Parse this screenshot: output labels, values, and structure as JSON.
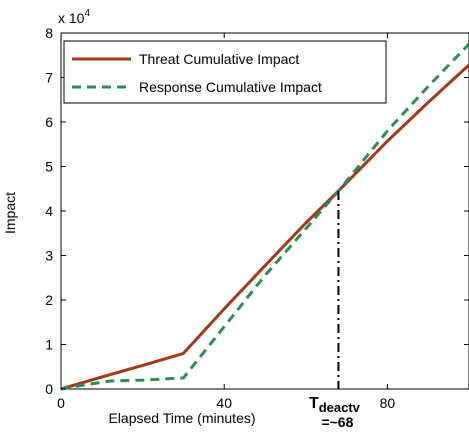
{
  "chart_data": {
    "type": "line",
    "xlabel": "Elapsed Time (minutes)",
    "ylabel": "Impact",
    "xlim": [
      0,
      100
    ],
    "ylim": [
      0,
      80000
    ],
    "x_ticks": [
      0,
      40,
      80
    ],
    "y_ticks": [
      0,
      1,
      2,
      3,
      4,
      5,
      6,
      7,
      8
    ],
    "y_multiplier_base": "x 10",
    "y_multiplier_exp": "4",
    "grid": false,
    "legend_position": "top-left",
    "series": [
      {
        "name": "Threat Cumulative Impact",
        "color": "#a0391a",
        "style": "solid",
        "x": [
          0,
          10,
          20,
          30,
          40,
          50,
          60,
          68,
          80,
          90,
          100
        ],
        "y": [
          0,
          2700,
          5300,
          8000,
          18000,
          27700,
          37300,
          44500,
          55700,
          64400,
          72800
        ]
      },
      {
        "name": "Response Cumulative Impact",
        "color": "#2e8b57",
        "style": "dashed",
        "x": [
          0,
          5,
          12,
          20,
          30,
          40,
          50,
          60,
          68,
          80,
          90,
          100
        ],
        "y": [
          0,
          800,
          1800,
          2000,
          2500,
          14000,
          25500,
          36000,
          44500,
          58000,
          68000,
          77500
        ]
      }
    ],
    "annotations": [
      {
        "x": 68,
        "y": 44500,
        "label_main": "T",
        "label_sub": "deactv",
        "label_value": "=~68"
      }
    ]
  }
}
